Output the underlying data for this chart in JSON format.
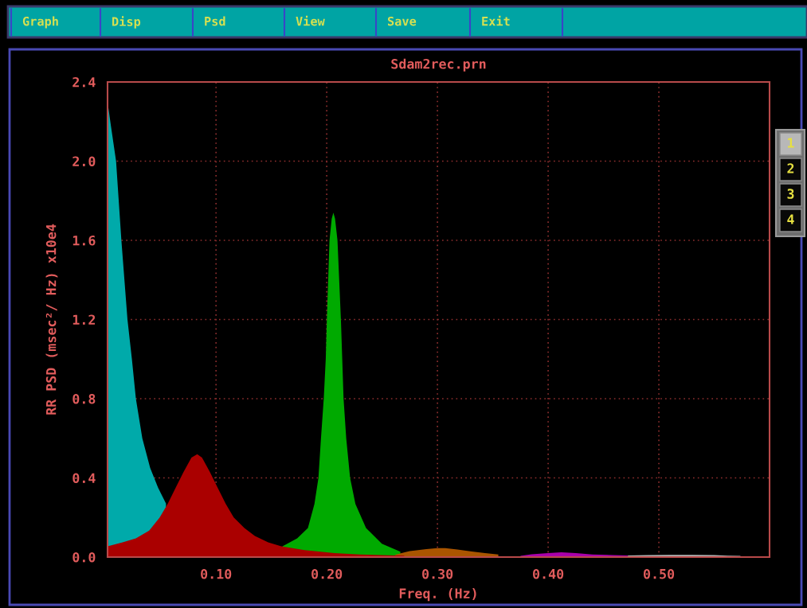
{
  "chart_data": {
    "type": "area",
    "title": "Sdam2rec.prn",
    "xlabel": "Freq. (Hz)",
    "ylabel": "RR PSD (msec²/ Hz) x10e4",
    "annotations": [
      "Graph",
      "Disp",
      "Psd",
      "View",
      "Save",
      "Exit",
      "1",
      "2",
      "3",
      "4"
    ],
    "xlim": [
      0.002,
      0.6
    ],
    "ylim": [
      0,
      2.4
    ],
    "xticks": [
      {
        "value": 0.1,
        "label": "0.10"
      },
      {
        "value": 0.2,
        "label": "0.20"
      },
      {
        "value": 0.3,
        "label": "0.30"
      },
      {
        "value": 0.4,
        "label": "0.40"
      },
      {
        "value": 0.5,
        "label": "0.50"
      }
    ],
    "yticks": [
      {
        "value": 0,
        "label": "0.0"
      },
      0.4,
      0.8,
      1.2,
      1.6,
      {
        "value": 2,
        "label": "2.0"
      },
      2.4
    ],
    "grid": true,
    "series": [
      {
        "color": "#00aaaa",
        "x": [
          0.002,
          0.005,
          0.0097,
          0.0145,
          0.02,
          0.024,
          0.0276,
          0.0334,
          0.0405,
          0.0477,
          0.0548
        ],
        "values": [
          2.3,
          2.18,
          2.0,
          1.6,
          1.2,
          1.0,
          0.8,
          0.6,
          0.45,
          0.35,
          0.27
        ]
      },
      {
        "color": "#00aa00",
        "x": [
          0.16,
          0.1733,
          0.183,
          0.1889,
          0.1925,
          0.1948,
          0.1973,
          0.1991,
          0.2001,
          0.2025,
          0.2045,
          0.206,
          0.2075,
          0.2097,
          0.2128,
          0.214,
          0.2152,
          0.2176,
          0.2211,
          0.2259,
          0.2355,
          0.2498,
          0.2665
        ],
        "values": [
          0.054,
          0.094,
          0.147,
          0.268,
          0.4,
          0.6,
          0.8,
          1.0,
          1.2,
          1.6,
          1.71,
          1.74,
          1.71,
          1.6,
          1.2,
          1.0,
          0.8,
          0.6,
          0.4,
          0.268,
          0.147,
          0.067,
          0.027
        ]
      },
      {
        "color": "#aa5500",
        "x": [
          0.262,
          0.275,
          0.29,
          0.3,
          0.307,
          0.318,
          0.331,
          0.343,
          0.355
        ],
        "values": [
          0.012,
          0.03,
          0.04,
          0.045,
          0.045,
          0.038,
          0.028,
          0.02,
          0.013
        ]
      },
      {
        "color": "#aa00aa",
        "x": [
          0.375,
          0.385,
          0.4,
          0.412,
          0.425,
          0.44,
          0.458,
          0.472
        ],
        "values": [
          0.006,
          0.014,
          0.02,
          0.024,
          0.02,
          0.013,
          0.01,
          0.008
        ]
      },
      {
        "color": "#b4b4b4",
        "x": [
          0.472,
          0.49,
          0.51,
          0.53,
          0.55,
          0.562,
          0.5737
        ],
        "values": [
          0.008,
          0.01,
          0.011,
          0.011,
          0.01,
          0.007,
          0.006
        ]
      },
      {
        "color": "#aa0000",
        "x": [
          0.002,
          0.0156,
          0.0276,
          0.0396,
          0.0491,
          0.0563,
          0.0634,
          0.0706,
          0.0778,
          0.083,
          0.0873,
          0.0945,
          0.1016,
          0.1088,
          0.116,
          0.1256,
          0.1351,
          0.1471,
          0.159,
          0.18,
          0.2068,
          0.23,
          0.255,
          0.27
        ],
        "values": [
          0.054,
          0.074,
          0.094,
          0.134,
          0.2,
          0.268,
          0.349,
          0.429,
          0.503,
          0.52,
          0.503,
          0.429,
          0.349,
          0.268,
          0.2,
          0.147,
          0.107,
          0.074,
          0.054,
          0.035,
          0.02,
          0.013,
          0.009,
          0.007
        ]
      }
    ]
  }
}
